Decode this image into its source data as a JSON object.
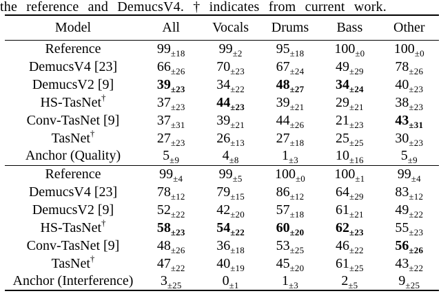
{
  "caption": "the reference and DemucsV4. † indicates from current work.",
  "table": {
    "headers": [
      "Model",
      "All",
      "Vocals",
      "Drums",
      "Bass",
      "Other"
    ],
    "sections": [
      {
        "name": "quality",
        "rows": [
          {
            "model": "Reference",
            "sup": "",
            "cells": [
              {
                "v": "99",
                "s": "±18",
                "b": false
              },
              {
                "v": "99",
                "s": "±2",
                "b": false
              },
              {
                "v": "95",
                "s": "±18",
                "b": false
              },
              {
                "v": "100",
                "s": "±0",
                "b": false
              },
              {
                "v": "100",
                "s": "±0",
                "b": false
              }
            ]
          },
          {
            "model": "DemucsV4 [23]",
            "sup": "",
            "cells": [
              {
                "v": "66",
                "s": "±26",
                "b": false
              },
              {
                "v": "70",
                "s": "±23",
                "b": false
              },
              {
                "v": "67",
                "s": "±24",
                "b": false
              },
              {
                "v": "49",
                "s": "±29",
                "b": false
              },
              {
                "v": "78",
                "s": "±26",
                "b": false
              }
            ]
          },
          {
            "model": "DemucsV2 [9]",
            "sup": "",
            "cells": [
              {
                "v": "39",
                "s": "±23",
                "b": true
              },
              {
                "v": "34",
                "s": "±22",
                "b": false
              },
              {
                "v": "48",
                "s": "±27",
                "b": true
              },
              {
                "v": "34",
                "s": "±24",
                "b": true
              },
              {
                "v": "40",
                "s": "±23",
                "b": false
              }
            ]
          },
          {
            "model": "HS-TasNet",
            "sup": "†",
            "cells": [
              {
                "v": "37",
                "s": "±23",
                "b": false
              },
              {
                "v": "44",
                "s": "±23",
                "b": true
              },
              {
                "v": "39",
                "s": "±21",
                "b": false
              },
              {
                "v": "29",
                "s": "±21",
                "b": false
              },
              {
                "v": "38",
                "s": "±23",
                "b": false
              }
            ]
          },
          {
            "model": "Conv-TasNet [9]",
            "sup": "",
            "cells": [
              {
                "v": "37",
                "s": "±31",
                "b": false
              },
              {
                "v": "39",
                "s": "±21",
                "b": false
              },
              {
                "v": "44",
                "s": "±26",
                "b": false
              },
              {
                "v": "21",
                "s": "±23",
                "b": false
              },
              {
                "v": "43",
                "s": "±31",
                "b": true
              }
            ]
          },
          {
            "model": "TasNet",
            "sup": "†",
            "cells": [
              {
                "v": "27",
                "s": "±23",
                "b": false
              },
              {
                "v": "26",
                "s": "±13",
                "b": false
              },
              {
                "v": "27",
                "s": "±18",
                "b": false
              },
              {
                "v": "25",
                "s": "±25",
                "b": false
              },
              {
                "v": "30",
                "s": "±23",
                "b": false
              }
            ]
          },
          {
            "model": "Anchor (Quality)",
            "sup": "",
            "cells": [
              {
                "v": "5",
                "s": "±9",
                "b": false
              },
              {
                "v": "4",
                "s": "±8",
                "b": false
              },
              {
                "v": "1",
                "s": "±3",
                "b": false
              },
              {
                "v": "10",
                "s": "±16",
                "b": false
              },
              {
                "v": "5",
                "s": "±9",
                "b": false
              }
            ]
          }
        ]
      },
      {
        "name": "interference",
        "rows": [
          {
            "model": "Reference",
            "sup": "",
            "cells": [
              {
                "v": "99",
                "s": "±4",
                "b": false
              },
              {
                "v": "99",
                "s": "±5",
                "b": false
              },
              {
                "v": "100",
                "s": "±0",
                "b": false
              },
              {
                "v": "100",
                "s": "±1",
                "b": false
              },
              {
                "v": "99",
                "s": "±4",
                "b": false
              }
            ]
          },
          {
            "model": "DemucsV4 [23]",
            "sup": "",
            "cells": [
              {
                "v": "78",
                "s": "±12",
                "b": false
              },
              {
                "v": "79",
                "s": "±15",
                "b": false
              },
              {
                "v": "86",
                "s": "±12",
                "b": false
              },
              {
                "v": "64",
                "s": "±29",
                "b": false
              },
              {
                "v": "83",
                "s": "±12",
                "b": false
              }
            ]
          },
          {
            "model": "DemucsV2 [9]",
            "sup": "",
            "cells": [
              {
                "v": "52",
                "s": "±22",
                "b": false
              },
              {
                "v": "42",
                "s": "±20",
                "b": false
              },
              {
                "v": "57",
                "s": "±18",
                "b": false
              },
              {
                "v": "61",
                "s": "±21",
                "b": false
              },
              {
                "v": "49",
                "s": "±22",
                "b": false
              }
            ]
          },
          {
            "model": "HS-TasNet",
            "sup": "†",
            "cells": [
              {
                "v": "58",
                "s": "±23",
                "b": true
              },
              {
                "v": "54",
                "s": "±22",
                "b": true
              },
              {
                "v": "60",
                "s": "±20",
                "b": true
              },
              {
                "v": "62",
                "s": "±23",
                "b": true
              },
              {
                "v": "55",
                "s": "±23",
                "b": false
              }
            ]
          },
          {
            "model": "Conv-TasNet [9]",
            "sup": "",
            "cells": [
              {
                "v": "48",
                "s": "±26",
                "b": false
              },
              {
                "v": "36",
                "s": "±18",
                "b": false
              },
              {
                "v": "53",
                "s": "±25",
                "b": false
              },
              {
                "v": "46",
                "s": "±22",
                "b": false
              },
              {
                "v": "56",
                "s": "±26",
                "b": true
              }
            ]
          },
          {
            "model": "TasNet",
            "sup": "†",
            "cells": [
              {
                "v": "47",
                "s": "±22",
                "b": false
              },
              {
                "v": "40",
                "s": "±19",
                "b": false
              },
              {
                "v": "45",
                "s": "±20",
                "b": false
              },
              {
                "v": "61",
                "s": "±25",
                "b": false
              },
              {
                "v": "43",
                "s": "±22",
                "b": false
              }
            ]
          },
          {
            "model": "Anchor (Interference)",
            "sup": "",
            "cells": [
              {
                "v": "3",
                "s": "±25",
                "b": false
              },
              {
                "v": "0",
                "s": "±1",
                "b": false
              },
              {
                "v": "1",
                "s": "±3",
                "b": false
              },
              {
                "v": "2",
                "s": "±5",
                "b": false
              },
              {
                "v": "9",
                "s": "±25",
                "b": false
              }
            ]
          }
        ]
      }
    ]
  },
  "colors": {
    "text": "#000000",
    "background": "#ffffff"
  }
}
